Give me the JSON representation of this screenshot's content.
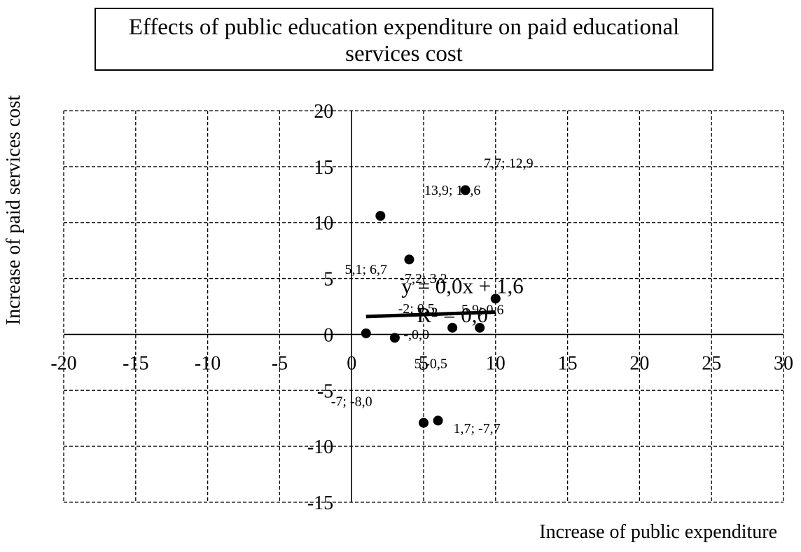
{
  "chart_data": {
    "type": "scatter",
    "title": "Effects of public education expenditure on paid educational services cost",
    "xlabel": "Increase of public expenditure",
    "ylabel": "Increase of paid services cost",
    "xlim": [
      -20,
      30
    ],
    "ylim": [
      -15,
      20
    ],
    "x_ticks": [
      "-20",
      "-15",
      "-10",
      "-5",
      "0",
      "5",
      "10",
      "15",
      "20",
      "25",
      "30"
    ],
    "y_ticks": [
      "-15",
      "-10",
      "-5",
      "0",
      "5",
      "10",
      "15",
      "20"
    ],
    "grid": true,
    "points": [
      {
        "x": 1.0,
        "y": 0.1
      },
      {
        "x": 2.0,
        "y": 10.6
      },
      {
        "x": 3.0,
        "y": -0.3
      },
      {
        "x": 4.0,
        "y": 6.7
      },
      {
        "x": 5.0,
        "y": -7.9
      },
      {
        "x": 6.0,
        "y": -7.7
      },
      {
        "x": 7.0,
        "y": 0.6
      },
      {
        "x": 7.9,
        "y": 12.9
      },
      {
        "x": 8.9,
        "y": 0.6
      },
      {
        "x": 10.0,
        "y": 3.2
      }
    ],
    "point_labels": [
      {
        "text": "-,0,0",
        "x": 4.5,
        "y": -0.4
      },
      {
        "text": "13,9; 10,6",
        "x": 7.0,
        "y": 12.5
      },
      {
        "text": "5,1; 6,7",
        "x": 1.0,
        "y": 5.4
      },
      {
        "text": "-7,2; 3,2",
        "x": 5.0,
        "y": 4.6
      },
      {
        "text": "-2; 0,5",
        "x": 4.5,
        "y": 1.9
      },
      {
        "text": "5,9; 0,6",
        "x": 9.1,
        "y": 1.8
      },
      {
        "text": "7,7; 12,9",
        "x": 10.9,
        "y": 14.9
      },
      {
        "text": "5;-0,5",
        "x": 5.5,
        "y": -3.0
      },
      {
        "text": "-7; -8,0",
        "x": 0.0,
        "y": -6.4
      },
      {
        "text": "1,7; -7,7",
        "x": 8.7,
        "y": -8.8
      }
    ],
    "trendline": {
      "x": [
        1.0,
        10.0
      ],
      "y": [
        1.6,
        2.0
      ],
      "equation": "y = 0,0x + 1,6",
      "r2_label": "R² = 0,0"
    }
  }
}
